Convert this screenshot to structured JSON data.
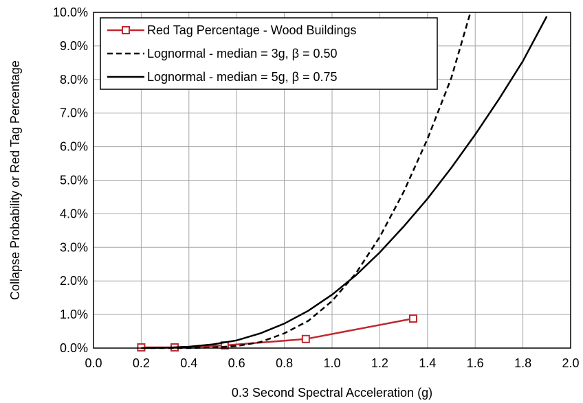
{
  "chart_data": {
    "type": "line",
    "title": "",
    "xlabel": "0.3 Second Spectral Acceleration (g)",
    "ylabel": "Collapse Probability or Red Tag Percentage",
    "xlim": [
      0.0,
      2.0
    ],
    "ylim": [
      0.0,
      0.1
    ],
    "x_ticks": [
      0.0,
      0.2,
      0.4,
      0.6,
      0.8,
      1.0,
      1.2,
      1.4,
      1.6,
      1.8,
      2.0
    ],
    "x_tick_labels": [
      "0.0",
      "0.2",
      "0.4",
      "0.6",
      "0.8",
      "1.0",
      "1.2",
      "1.4",
      "1.6",
      "1.8",
      "2.0"
    ],
    "y_ticks": [
      0.0,
      0.01,
      0.02,
      0.03,
      0.04,
      0.05,
      0.06,
      0.07,
      0.08,
      0.09,
      0.1
    ],
    "y_tick_labels": [
      "0.0%",
      "1.0%",
      "2.0%",
      "3.0%",
      "4.0%",
      "5.0%",
      "6.0%",
      "7.0%",
      "8.0%",
      "9.0%",
      "10.0%"
    ],
    "grid": true,
    "legend_position": "top-left",
    "series": [
      {
        "name": "Red Tag Percentage - Wood Buildings",
        "style": "line-markers",
        "marker": "square",
        "color": "#c0282e",
        "x": [
          0.2,
          0.34,
          0.55,
          0.89,
          1.34
        ],
        "y": [
          0.0002,
          0.0002,
          0.0008,
          0.0027,
          0.0088
        ]
      },
      {
        "name": "Lognormal - median = 3g, β = 0.50",
        "style": "dashed",
        "color": "#000000",
        "median": 3,
        "beta": 0.5,
        "x": [
          0.2,
          0.3,
          0.4,
          0.5,
          0.6,
          0.7,
          0.8,
          0.9,
          1.0,
          1.1,
          1.2,
          1.3,
          1.4,
          1.5,
          1.58
        ],
        "y": [
          0.0,
          0.0,
          0.0,
          0.0002,
          0.0006,
          0.0018,
          0.0044,
          0.0081,
          0.014,
          0.0223,
          0.0331,
          0.0465,
          0.0623,
          0.0805,
          0.1
        ]
      },
      {
        "name": "Lognormal - median = 5g, β = 0.75",
        "style": "solid",
        "color": "#000000",
        "median": 5,
        "beta": 0.75,
        "x": [
          0.2,
          0.3,
          0.4,
          0.5,
          0.6,
          0.7,
          0.8,
          0.9,
          1.0,
          1.1,
          1.2,
          1.3,
          1.4,
          1.5,
          1.6,
          1.7,
          1.8,
          1.9
        ],
        "y": [
          0.0,
          0.0001,
          0.0004,
          0.0011,
          0.0023,
          0.0044,
          0.0073,
          0.0111,
          0.0159,
          0.0217,
          0.0285,
          0.0362,
          0.0445,
          0.0537,
          0.0636,
          0.0742,
          0.0855,
          0.0988
        ]
      }
    ]
  }
}
